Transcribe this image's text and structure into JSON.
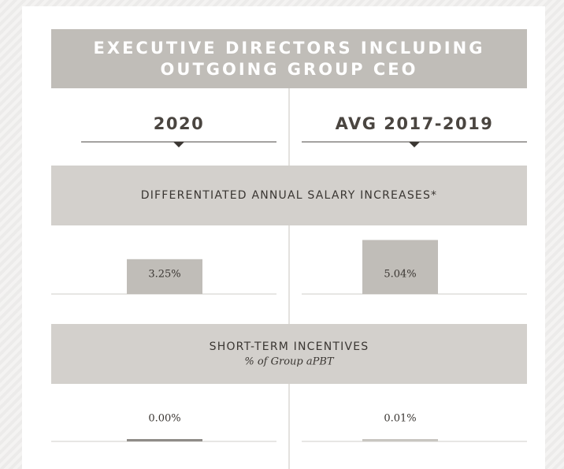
{
  "header": {
    "title_lines": [
      "EXECUTIVE DIRECTORS INCLUDING",
      "OUTGOING GROUP CEO"
    ]
  },
  "columns": [
    "2020",
    "AVG 2017-2019"
  ],
  "sections": [
    {
      "title": "DIFFERENTIATED ANNUAL SALARY INCREASES*",
      "values": [
        3.25,
        5.04
      ],
      "value_labels": [
        "3.25%",
        "5.04%"
      ],
      "colors": [
        "#c0bdb8",
        "#c0bdb8"
      ]
    },
    {
      "title": "SHORT-TERM INCENTIVES",
      "subtitle": "% of Group aPBT",
      "values": [
        0,
        0.01
      ],
      "value_labels": [
        "0.00%",
        "0.01%"
      ],
      "colors": [
        "#8f8c88",
        "#c9c6c1"
      ]
    }
  ]
}
